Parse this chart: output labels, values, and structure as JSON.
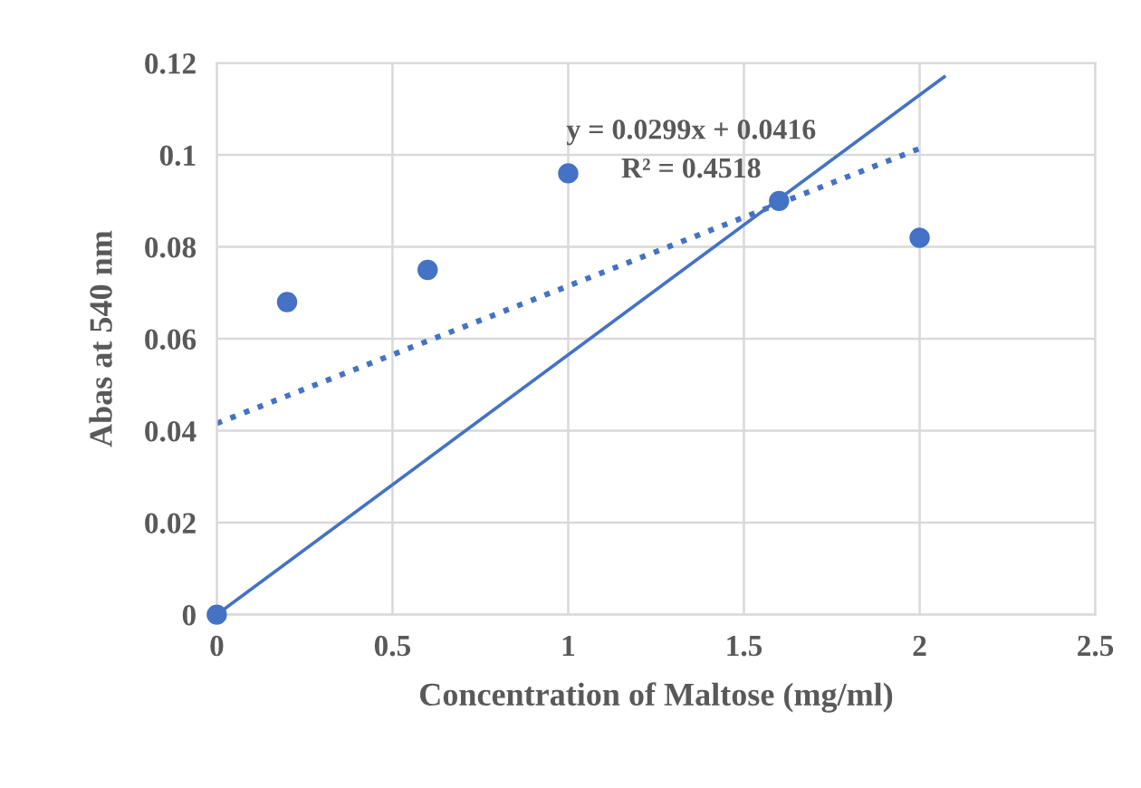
{
  "chart_data": {
    "type": "scatter",
    "xlabel": "Concentration of Maltose (mg/ml)",
    "ylabel": "Abas at 540 nm",
    "series": [
      {
        "color": "#4472c4",
        "x": [
          0,
          0.2,
          0.6,
          1,
          1.6,
          2
        ],
        "values": [
          0,
          0.068,
          0.075,
          0.096,
          0.09,
          0.082
        ],
        "marker": "circle"
      },
      {
        "type": "line",
        "color": "#4472c4",
        "x": [
          0,
          2.07
        ],
        "values": [
          0,
          0.117
        ],
        "line_style": "solid"
      },
      {
        "type": "line",
        "color": "#4472c4",
        "x": [
          0,
          2
        ],
        "values": [
          0.0416,
          0.1014
        ],
        "line_style": "dotted"
      }
    ],
    "annotations": [
      "y = 0.0299x + 0.0416",
      "R² = 0.4518"
    ],
    "xlim": [
      0,
      2.5
    ],
    "xticks": [
      0,
      0.5,
      1,
      1.5,
      2,
      2.5
    ],
    "ylim": [
      0,
      0.12
    ],
    "yticks": [
      0,
      0.02,
      0.04,
      0.06,
      0.08,
      0.1,
      0.12
    ],
    "grid": true
  }
}
